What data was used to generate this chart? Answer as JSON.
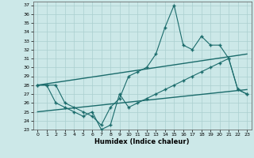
{
  "xlabel": "Humidex (Indice chaleur)",
  "xlim": [
    -0.5,
    23.5
  ],
  "ylim": [
    23,
    37.4
  ],
  "yticks": [
    23,
    24,
    25,
    26,
    27,
    28,
    29,
    30,
    31,
    32,
    33,
    34,
    35,
    36,
    37
  ],
  "xticks": [
    0,
    1,
    2,
    3,
    4,
    5,
    6,
    7,
    8,
    9,
    10,
    11,
    12,
    13,
    14,
    15,
    16,
    17,
    18,
    19,
    20,
    21,
    22,
    23
  ],
  "bg_color": "#cce8e8",
  "grid_color": "#aacfcf",
  "line_color": "#1a6b6b",
  "data_upper": [
    [
      0,
      28.0
    ],
    [
      1,
      28.0
    ],
    [
      2,
      28.0
    ],
    [
      3,
      26.0
    ],
    [
      4,
      25.5
    ],
    [
      5,
      25.0
    ],
    [
      6,
      24.5
    ],
    [
      7,
      23.5
    ],
    [
      8,
      25.5
    ],
    [
      9,
      26.5
    ],
    [
      10,
      29.0
    ],
    [
      11,
      29.5
    ],
    [
      12,
      30.0
    ],
    [
      13,
      31.5
    ],
    [
      14,
      34.5
    ],
    [
      15,
      37.0
    ],
    [
      16,
      32.5
    ],
    [
      17,
      32.0
    ],
    [
      18,
      33.5
    ],
    [
      19,
      32.5
    ],
    [
      20,
      32.5
    ],
    [
      21,
      31.0
    ],
    [
      22,
      27.5
    ],
    [
      23,
      27.0
    ]
  ],
  "data_lower": [
    [
      0,
      28.0
    ],
    [
      1,
      28.0
    ],
    [
      2,
      26.0
    ],
    [
      3,
      25.5
    ],
    [
      4,
      25.0
    ],
    [
      5,
      24.5
    ],
    [
      6,
      25.0
    ],
    [
      7,
      23.0
    ],
    [
      8,
      23.5
    ],
    [
      9,
      27.0
    ],
    [
      10,
      25.5
    ],
    [
      11,
      26.0
    ],
    [
      12,
      26.5
    ],
    [
      13,
      27.0
    ],
    [
      14,
      27.5
    ],
    [
      15,
      28.0
    ],
    [
      16,
      28.5
    ],
    [
      17,
      29.0
    ],
    [
      18,
      29.5
    ],
    [
      19,
      30.0
    ],
    [
      20,
      30.5
    ],
    [
      21,
      31.0
    ],
    [
      22,
      27.5
    ],
    [
      23,
      27.0
    ]
  ],
  "trend1_x": [
    0,
    23
  ],
  "trend1_y": [
    28.0,
    31.5
  ],
  "trend2_x": [
    0,
    23
  ],
  "trend2_y": [
    25.0,
    27.5
  ],
  "marker": "+",
  "markersize": 2.5,
  "linewidth": 0.8,
  "xlabel_fontsize": 6,
  "tick_fontsize": 4.5
}
